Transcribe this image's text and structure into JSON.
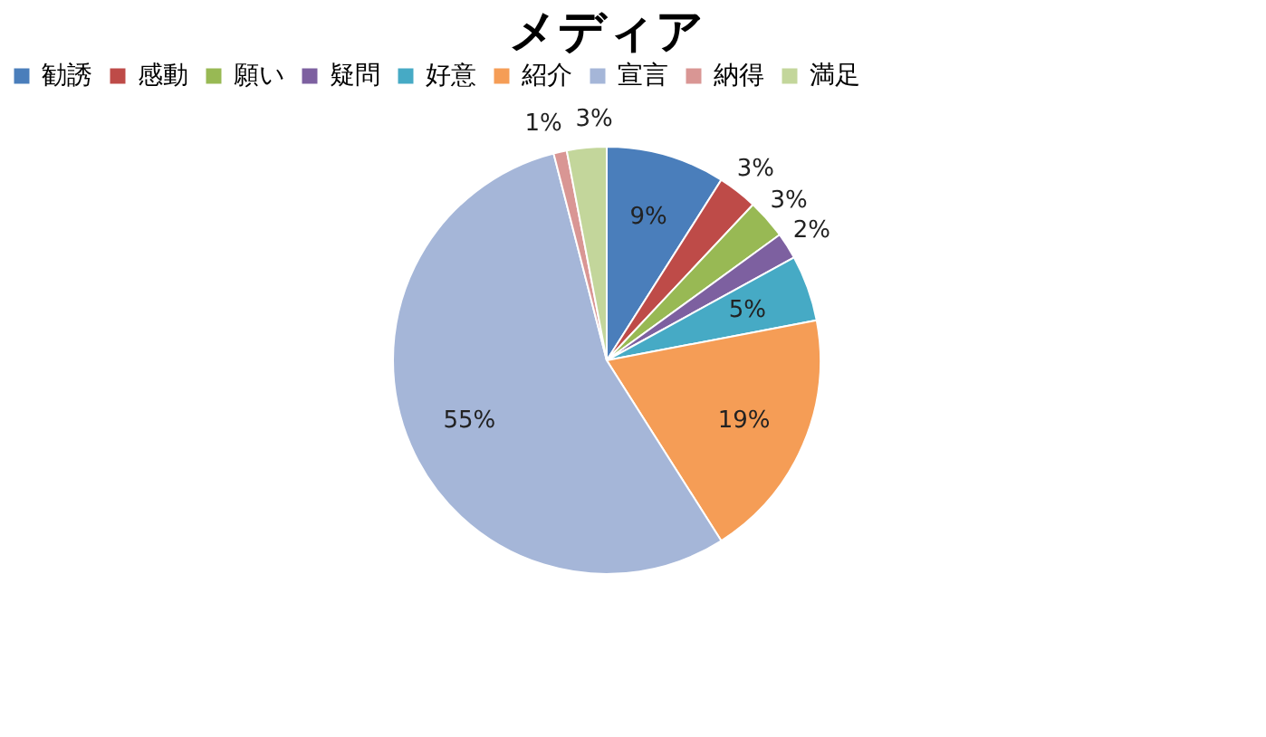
{
  "chart_data": {
    "type": "pie",
    "title": "メディア",
    "categories": [
      "勧誘",
      "感動",
      "願い",
      "疑問",
      "好意",
      "紹介",
      "宣言",
      "納得",
      "満足"
    ],
    "values": [
      9,
      3,
      3,
      2,
      5,
      19,
      55,
      1,
      3
    ],
    "colors": [
      "#4a7ebb",
      "#be4b48",
      "#98b954",
      "#7d60a0",
      "#46aac5",
      "#f59d56",
      "#a5b6d8",
      "#d99694",
      "#c3d69b"
    ],
    "value_labels": [
      "9%",
      "3%",
      "3%",
      "2%",
      "5%",
      "19%",
      "55%",
      "1%",
      "3%"
    ],
    "legend": "top"
  }
}
